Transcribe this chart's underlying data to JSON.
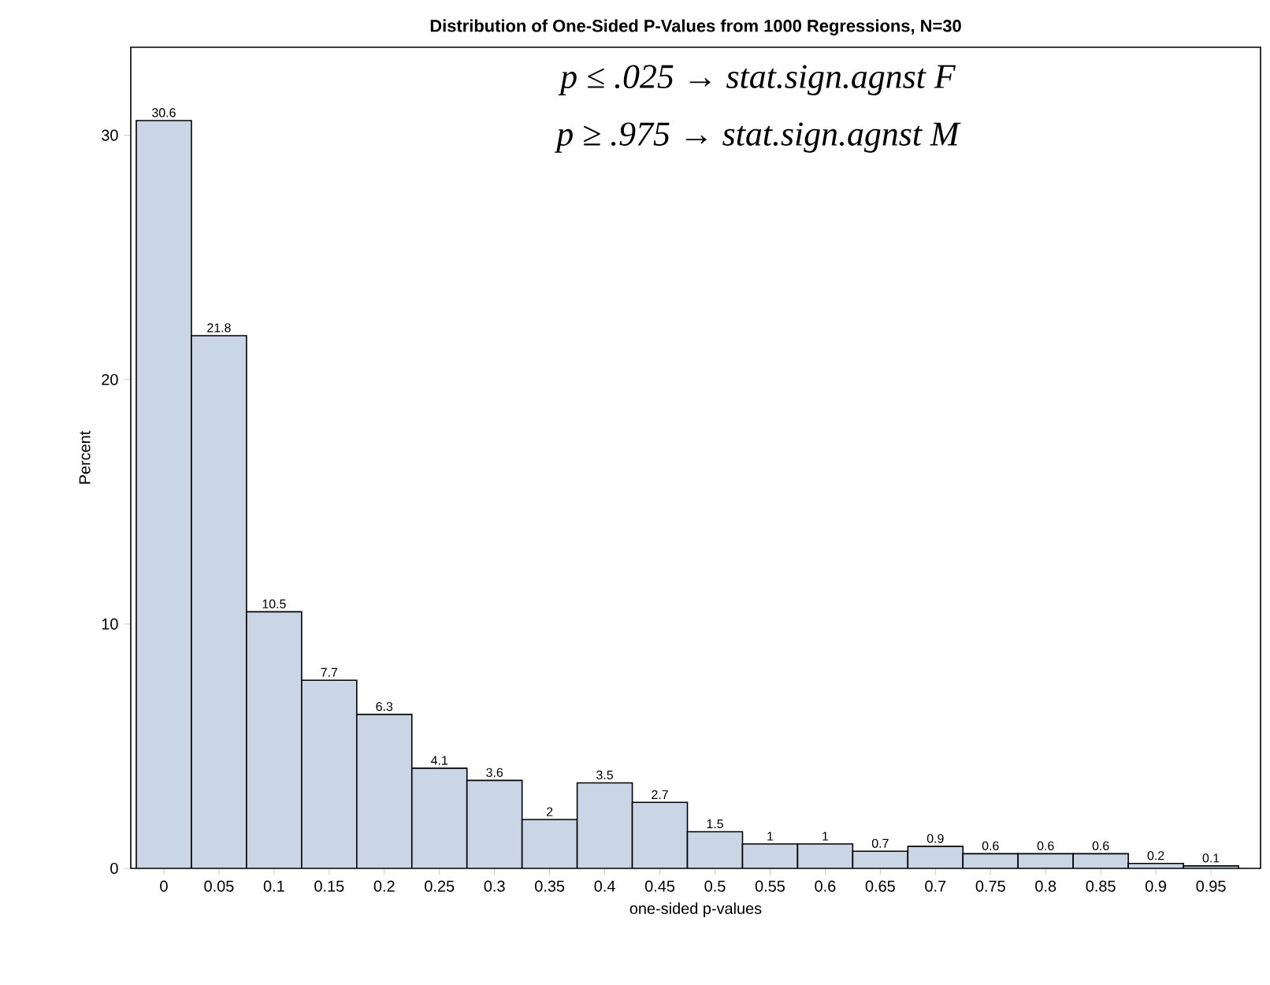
{
  "chart_data": {
    "type": "histogram",
    "title": "Distribution of One-Sided P-Values from 1000 Regressions, N=30",
    "xlabel": "one-sided p-values",
    "ylabel": "Percent",
    "bins": [
      -0.025,
      0.025,
      0.075,
      0.125,
      0.175,
      0.225,
      0.275,
      0.325,
      0.375,
      0.425,
      0.475,
      0.525,
      0.575,
      0.625,
      0.675,
      0.725,
      0.775,
      0.825,
      0.875,
      0.925,
      0.975
    ],
    "values": [
      30.6,
      21.8,
      10.5,
      7.7,
      6.3,
      4.1,
      3.6,
      2,
      3.5,
      2.7,
      1.5,
      1,
      1,
      0.7,
      0.9,
      0.6,
      0.6,
      0.6,
      0.2,
      0.1
    ],
    "color": "#cad5e5",
    "data_labels": true,
    "grid": false,
    "xlim": [
      -0.03,
      0.995
    ],
    "ylim": [
      0,
      33.6
    ],
    "xticks": [
      0,
      0.05,
      0.1,
      0.15,
      0.2,
      0.25,
      0.3,
      0.35,
      0.4,
      0.45,
      0.5,
      0.55,
      0.6,
      0.65,
      0.7,
      0.75,
      0.8,
      0.85,
      0.9,
      0.95
    ],
    "yticks": [
      0,
      10,
      20,
      30
    ],
    "annotations": [
      "p ≤ .025 → stat.sign.agnst F",
      "p ≥ .975 → stat.sign.agnst M"
    ]
  }
}
